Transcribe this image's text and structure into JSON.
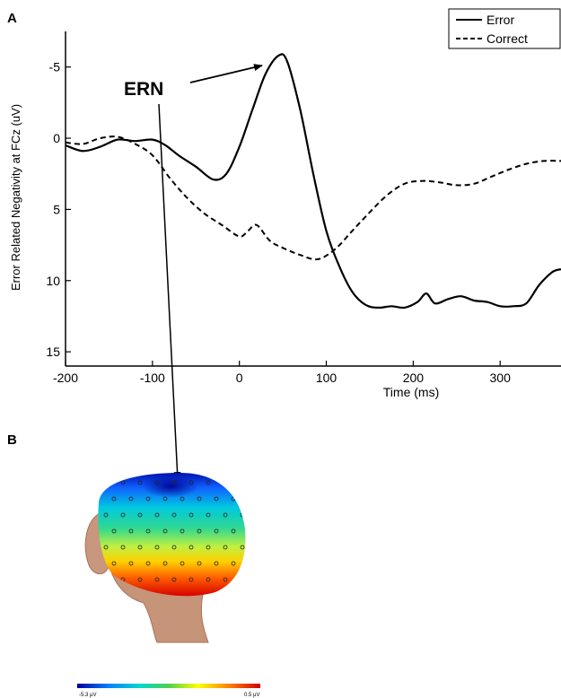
{
  "panels": {
    "a": "A",
    "b": "B"
  },
  "annotation": "ERN",
  "chart_data": {
    "type": "line",
    "title": "",
    "xlabel": "Time (ms)",
    "ylabel": "Error Related Negativity at FCz (uV)",
    "xlim": [
      -200,
      370
    ],
    "ylim": [
      -7.5,
      16
    ],
    "y_inverted": true,
    "x_ticks": [
      -200,
      -100,
      0,
      100,
      200,
      300
    ],
    "y_ticks": [
      -5,
      0,
      5,
      10,
      15
    ],
    "legend_position": "top-right",
    "grid": false,
    "series": [
      {
        "name": "Error",
        "style": "solid",
        "color": "#000000",
        "x": [
          -200,
          -180,
          -160,
          -140,
          -120,
          -100,
          -85,
          -70,
          -50,
          -30,
          -15,
          0,
          15,
          30,
          45,
          55,
          70,
          85,
          100,
          115,
          130,
          145,
          160,
          175,
          190,
          205,
          215,
          225,
          240,
          255,
          270,
          285,
          300,
          315,
          330,
          345,
          360,
          370
        ],
        "y": [
          0.5,
          0.9,
          0.6,
          0.1,
          0.2,
          0.1,
          0.5,
          1.2,
          2.0,
          2.9,
          2.5,
          0.6,
          -2.0,
          -4.5,
          -5.8,
          -5.4,
          -2.0,
          2.5,
          6.5,
          9.0,
          10.8,
          11.7,
          11.9,
          11.8,
          11.9,
          11.5,
          10.9,
          11.6,
          11.3,
          11.1,
          11.4,
          11.5,
          11.8,
          11.8,
          11.6,
          10.3,
          9.4,
          9.2
        ]
      },
      {
        "name": "Correct",
        "style": "dashed",
        "color": "#000000",
        "x": [
          -200,
          -180,
          -160,
          -140,
          -120,
          -100,
          -80,
          -60,
          -40,
          -20,
          0,
          10,
          20,
          35,
          50,
          70,
          90,
          110,
          130,
          150,
          170,
          190,
          210,
          230,
          250,
          270,
          290,
          310,
          330,
          350,
          370
        ],
        "y": [
          0.3,
          0.4,
          0.0,
          -0.1,
          0.4,
          1.2,
          2.8,
          4.2,
          5.3,
          6.1,
          6.9,
          6.5,
          6.1,
          7.2,
          7.7,
          8.2,
          8.5,
          7.8,
          6.5,
          5.2,
          4.0,
          3.2,
          3.0,
          3.1,
          3.3,
          3.2,
          2.7,
          2.2,
          1.8,
          1.6,
          1.6
        ]
      }
    ]
  },
  "colorbar": {
    "min_label": "-5.3 µV",
    "max_label": "0.5 µV",
    "colors": [
      "#0000a0",
      "#0080ff",
      "#00d8d0",
      "#50d050",
      "#ffff00",
      "#ff8000",
      "#d00000"
    ]
  }
}
